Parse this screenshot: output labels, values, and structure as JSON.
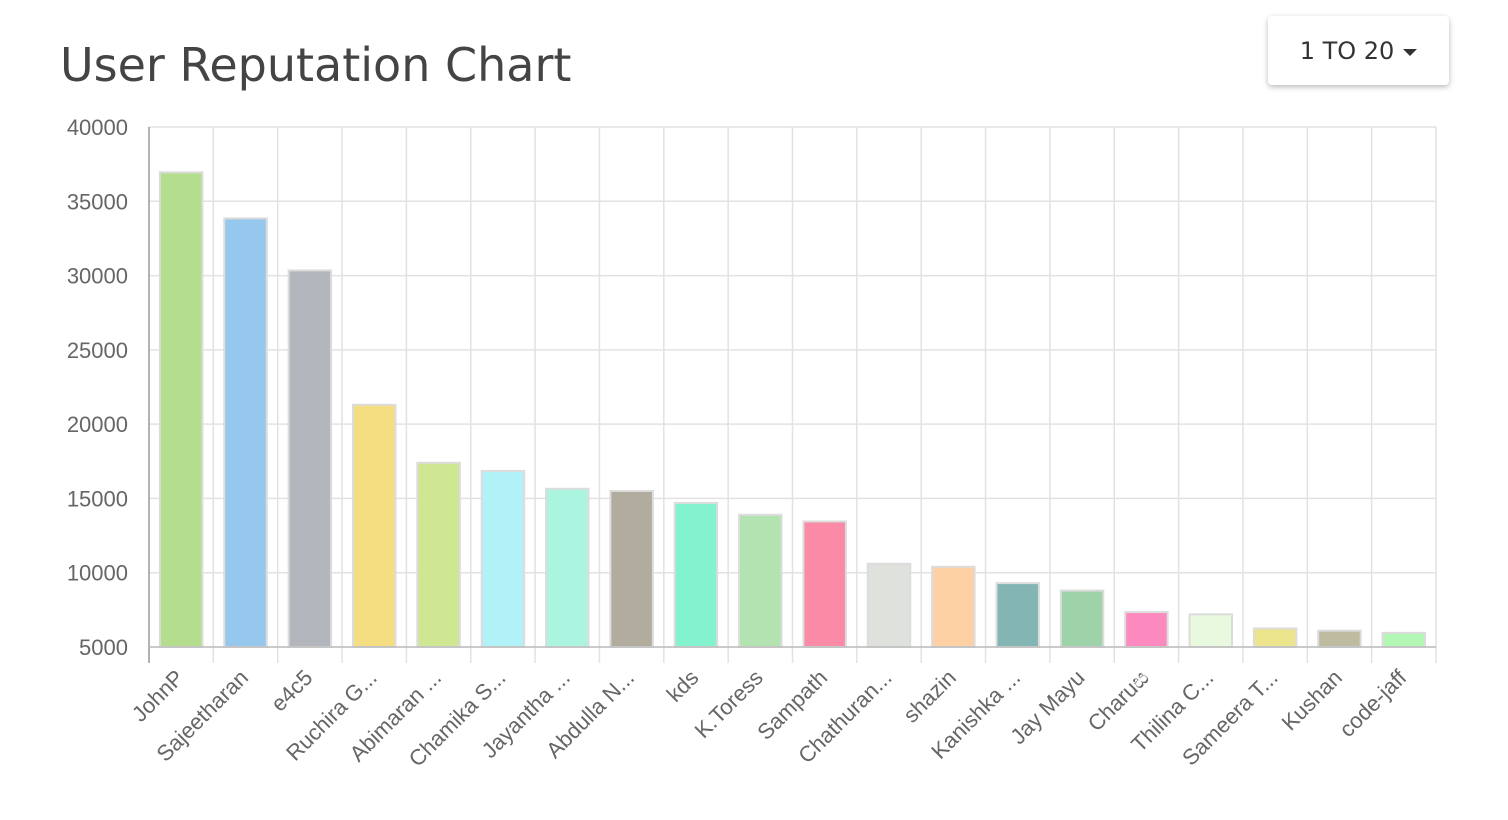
{
  "header": {
    "title": "User Reputation Chart",
    "range_label": "1 TO 20",
    "range_icon": "caret-down-icon"
  },
  "chart_data": {
    "type": "bar",
    "title": "User Reputation Chart",
    "xlabel": "",
    "ylabel": "",
    "ylim": [
      5000,
      40000
    ],
    "yticks": [
      5000,
      10000,
      15000,
      20000,
      25000,
      30000,
      35000,
      40000
    ],
    "grid": true,
    "legend": "none",
    "categories": [
      "JohnP",
      "Sajeetharan",
      "e4c5",
      "Ruchira G...",
      "Abimaran ...",
      "Chamika S...",
      "Jayantha ...",
      "Abdulla N...",
      "kds",
      "K.Toress",
      "Sampath",
      "Chathuran...",
      "shazin",
      "Kanishka ...",
      "Jay Mayu",
      "Charuස",
      "Thilina C...",
      "Sameera T...",
      "Kushan",
      "code-jaff"
    ],
    "values": [
      36950,
      33850,
      30350,
      21300,
      17400,
      16850,
      15650,
      15500,
      14700,
      13900,
      13450,
      10600,
      10400,
      9300,
      8800,
      7350,
      7200,
      6250,
      6100,
      5950
    ],
    "colors": [
      "#b5dd8e",
      "#96c7ec",
      "#b3b6bc",
      "#f5de82",
      "#cfe693",
      "#b1f1f8",
      "#abf5e0",
      "#b2ac9e",
      "#83f3cf",
      "#b4e3b2",
      "#fa8aa5",
      "#dee1dc",
      "#fdd1a4",
      "#83b6b2",
      "#9ed3aa",
      "#fd8abf",
      "#e8f9e0",
      "#ede58e",
      "#bebba0",
      "#b3f7b4"
    ]
  }
}
